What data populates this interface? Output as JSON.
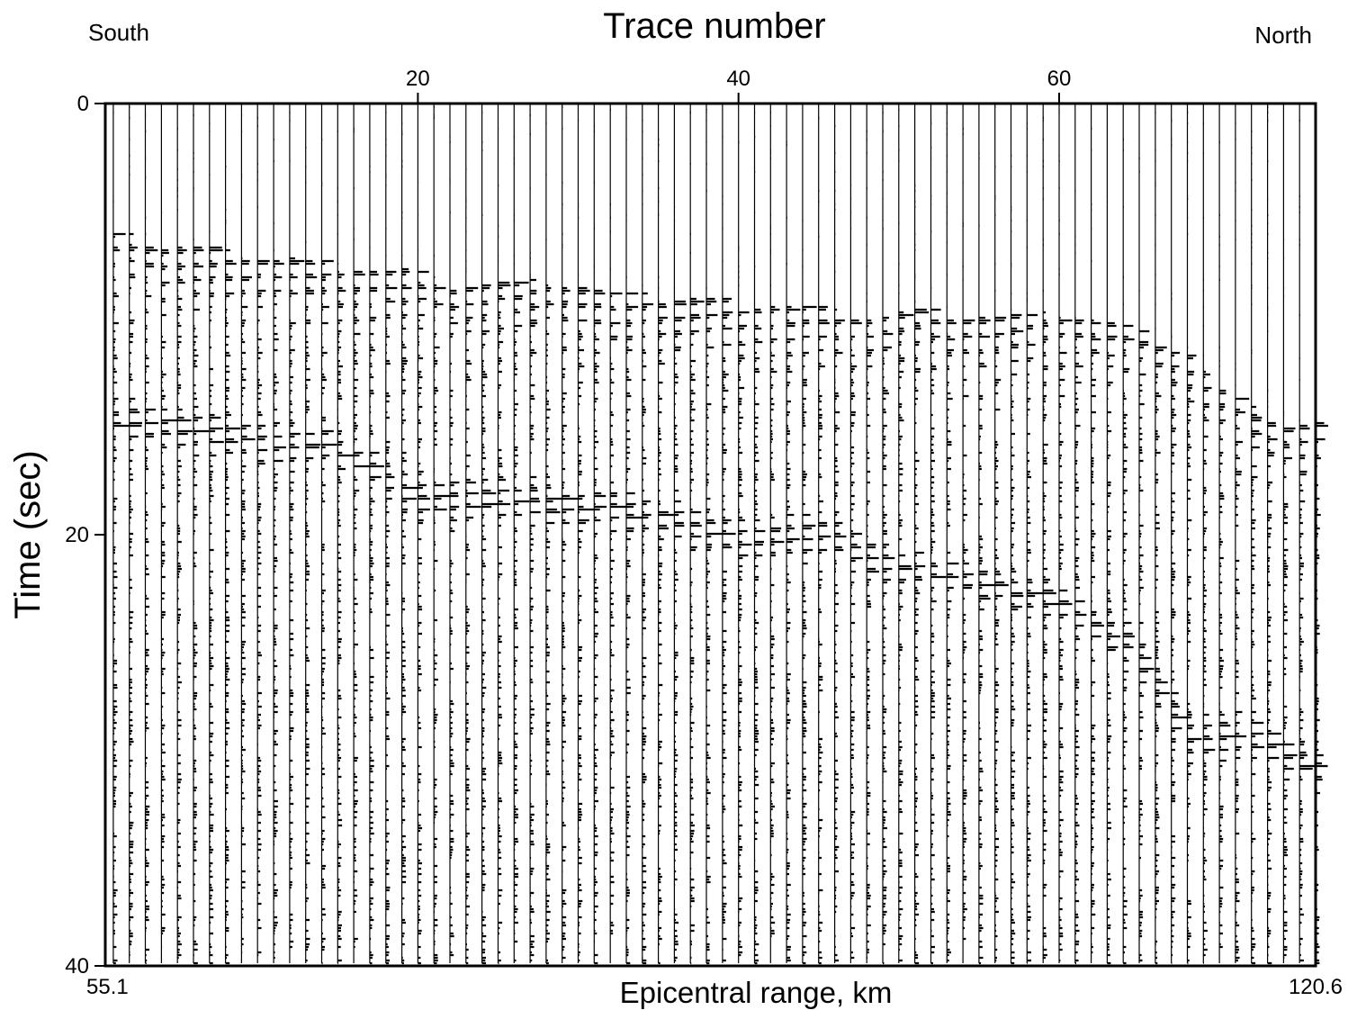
{
  "chart_data": {
    "type": "seismic_record_section",
    "title": "Trace number",
    "xlabel": "Epicentral range, km",
    "ylabel": "Time (sec)",
    "corner_left": "South",
    "corner_right": "North",
    "x_range_km": [
      55.1,
      120.6
    ],
    "x_tick_labels": [
      "55.1",
      "120.6"
    ],
    "trace_number_ticks": [
      20,
      40,
      60
    ],
    "trace_count": 76,
    "ylim": [
      0,
      40
    ],
    "y_ticks": [
      0,
      20,
      40
    ],
    "y_inverted": true,
    "grid": false,
    "polarity_fill": "positive-black",
    "first_arrival_sec": [
      {
        "trace": 2,
        "time": 6.0
      },
      {
        "trace": 4,
        "time": 6.5
      },
      {
        "trace": 5,
        "time": 6.5
      },
      {
        "trace": 10,
        "time": 6.9
      },
      {
        "trace": 13,
        "time": 7.2
      },
      {
        "trace": 14,
        "time": 7.3
      },
      {
        "trace": 20,
        "time": 7.7
      },
      {
        "trace": 22,
        "time": 8.2
      },
      {
        "trace": 26,
        "time": 8.2
      },
      {
        "trace": 28,
        "time": 8.0
      },
      {
        "trace": 32,
        "time": 8.7
      },
      {
        "trace": 36,
        "time": 8.9
      },
      {
        "trace": 40,
        "time": 9.1
      },
      {
        "trace": 44,
        "time": 9.3
      },
      {
        "trace": 48,
        "time": 9.7
      },
      {
        "trace": 52,
        "time": 9.5
      },
      {
        "trace": 56,
        "time": 9.8
      },
      {
        "trace": 60,
        "time": 9.6
      },
      {
        "trace": 64,
        "time": 10.2
      },
      {
        "trace": 68,
        "time": 11.5
      },
      {
        "trace": 70,
        "time": 13.3
      },
      {
        "trace": 74,
        "time": 14.8
      },
      {
        "trace": 76,
        "time": 14.8
      }
    ],
    "secondary_phase_sec": [
      {
        "trace": 4,
        "time": 14.8
      },
      {
        "trace": 10,
        "time": 15.8
      },
      {
        "trace": 14,
        "time": 15.8
      },
      {
        "trace": 20,
        "time": 18.3
      },
      {
        "trace": 26,
        "time": 18.4
      },
      {
        "trace": 32,
        "time": 18.8
      },
      {
        "trace": 36,
        "time": 19.5
      },
      {
        "trace": 40,
        "time": 20.2
      },
      {
        "trace": 46,
        "time": 20.0
      },
      {
        "trace": 48,
        "time": 21.3
      },
      {
        "trace": 52,
        "time": 21.8
      },
      {
        "trace": 56,
        "time": 22.5
      },
      {
        "trace": 60,
        "time": 23.3
      },
      {
        "trace": 64,
        "time": 25.0
      },
      {
        "trace": 68,
        "time": 29.5
      },
      {
        "trace": 72,
        "time": 29.3
      },
      {
        "trace": 76,
        "time": 31.0
      }
    ]
  }
}
